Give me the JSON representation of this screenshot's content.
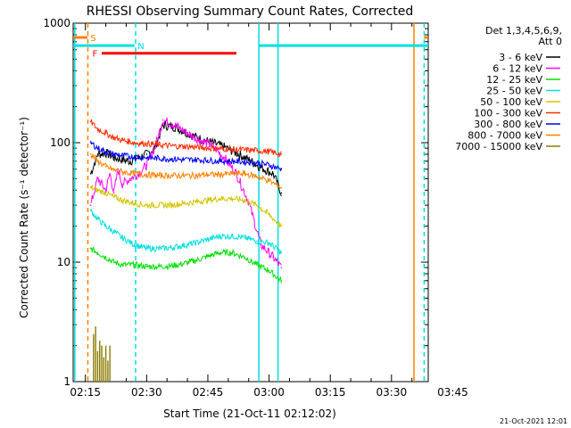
{
  "chart_data": {
    "type": "line",
    "title": "RHESSI Observing Summary Count Rates, Corrected",
    "xlabel": "Start Time (21-Oct-11 02:12:02)",
    "ylabel": "Corrected Count Rate (s⁻¹ detector⁻¹)",
    "y_scale": "log",
    "ylim": [
      1,
      1000
    ],
    "y_ticks": [
      1,
      10,
      100,
      1000
    ],
    "y_tick_labels": [
      "1",
      "10",
      "100",
      "1000"
    ],
    "x_range_min": [
      132,
      219
    ],
    "x_ticks_min": [
      135,
      150,
      165,
      180,
      195,
      210,
      225
    ],
    "x_tick_labels": [
      "02:15",
      "02:30",
      "02:45",
      "03:00",
      "03:15",
      "03:30",
      "03:45"
    ],
    "legend_title": "Det 1,3,4,5,6,9,",
    "legend_subtitle": "Att 0",
    "legend_position": "right",
    "footer_date": "21-Oct-2021 12:01",
    "colors": {
      "3-6": "#000000",
      "6-12": "#ff00ff",
      "12-25": "#00e000",
      "25-50": "#00e0e0",
      "50-100": "#d4c400",
      "100-300": "#ff2a00",
      "300-800": "#0000ff",
      "800-7000": "#ff8000",
      "7000-15000": "#8b7a00"
    },
    "series": [
      {
        "name": "3 - 6 keV",
        "color": "#000000",
        "x": [
          136.3,
          138,
          140,
          142,
          144,
          146,
          148,
          150,
          152,
          154,
          157,
          160,
          163,
          166,
          169,
          172,
          175,
          178,
          181,
          183
        ],
        "y": [
          55,
          80,
          82,
          75,
          72,
          70,
          75,
          80,
          90,
          140,
          135,
          120,
          108,
          100,
          92,
          82,
          72,
          62,
          55,
          38
        ]
      },
      {
        "name": "6 - 12 keV",
        "color": "#ff00ff",
        "x": [
          136.3,
          138,
          140,
          141,
          142,
          143,
          144,
          146,
          148,
          150,
          152,
          154,
          157,
          160,
          163,
          166,
          169,
          172,
          175,
          178,
          181,
          183
        ],
        "y": [
          30,
          50,
          40,
          55,
          38,
          60,
          45,
          50,
          55,
          65,
          90,
          155,
          140,
          120,
          105,
          95,
          75,
          55,
          32,
          14,
          11,
          9
        ]
      },
      {
        "name": "12 - 25 keV",
        "color": "#00e000",
        "x": [
          136.3,
          138,
          140,
          142,
          144,
          147,
          150,
          153,
          156,
          159,
          162,
          165,
          168,
          171,
          174,
          177,
          180,
          183
        ],
        "y": [
          13,
          12,
          11,
          10,
          9.5,
          9.5,
          9.2,
          9.2,
          9.3,
          9.7,
          10.3,
          11.2,
          12,
          12,
          11,
          9.5,
          8.5,
          7
        ]
      },
      {
        "name": "25 - 50 keV",
        "color": "#00e0e0",
        "x": [
          136.3,
          138,
          140,
          142,
          144,
          147,
          150,
          153,
          156,
          159,
          162,
          165,
          168,
          171,
          174,
          177,
          180,
          183
        ],
        "y": [
          27,
          23,
          20,
          18,
          16,
          14,
          13,
          13,
          13.2,
          13.8,
          14.5,
          15.5,
          16.5,
          16.5,
          16,
          15,
          14.5,
          12
        ]
      },
      {
        "name": "50 - 100 keV",
        "color": "#d4c400",
        "x": [
          136.3,
          138,
          140,
          142,
          144,
          147,
          150,
          153,
          156,
          159,
          162,
          165,
          168,
          171,
          174,
          177,
          180,
          183
        ],
        "y": [
          42,
          40,
          38,
          35,
          33,
          31,
          30,
          30,
          30,
          31,
          32,
          33,
          34,
          34,
          33,
          30,
          25,
          20
        ]
      },
      {
        "name": "100 - 300 keV",
        "color": "#ff2a00",
        "x": [
          136.3,
          138,
          140,
          142,
          144,
          147,
          150,
          153,
          156,
          159,
          162,
          165,
          168,
          171,
          174,
          177,
          180,
          183
        ],
        "y": [
          150,
          130,
          120,
          110,
          105,
          100,
          98,
          96,
          94,
          93,
          92,
          90,
          89,
          88,
          87,
          86,
          84,
          80
        ]
      },
      {
        "name": "300 - 800 keV",
        "color": "#0000ff",
        "x": [
          136.3,
          138,
          140,
          142,
          144,
          147,
          150,
          153,
          156,
          159,
          162,
          165,
          168,
          171,
          174,
          177,
          180,
          183
        ],
        "y": [
          100,
          90,
          84,
          80,
          78,
          76,
          75,
          74,
          73,
          72,
          72,
          71,
          70,
          70,
          69,
          68,
          65,
          60
        ]
      },
      {
        "name": "800 - 7000 keV",
        "color": "#ff8000",
        "x": [
          136.3,
          138,
          140,
          142,
          144,
          147,
          150,
          153,
          156,
          159,
          162,
          165,
          168,
          171,
          174,
          177,
          180,
          183
        ],
        "y": [
          80,
          70,
          63,
          59,
          57,
          55,
          54,
          53,
          53,
          53,
          53,
          54,
          54,
          55,
          55,
          52,
          48,
          42
        ]
      },
      {
        "name": "7000 - 15000 keV",
        "color": "#8b7a00",
        "x": [
          137,
          137.5,
          138,
          138.5,
          139,
          139.5,
          140,
          140.5,
          141
        ],
        "y": [
          2.5,
          2.9,
          1.8,
          2.2,
          2.0,
          1.6,
          2.0,
          1.5,
          2.0
        ]
      }
    ],
    "markers": [
      {
        "label": "N",
        "color": "#00e0e0",
        "y": 650,
        "segments": [
          [
            132,
            147
          ],
          [
            177.5,
            219
          ]
        ]
      },
      {
        "label": "S",
        "color": "#ff8000",
        "y": 760,
        "segments": [
          [
            132,
            135.5
          ],
          [
            218,
            219
          ]
        ]
      },
      {
        "label": "F",
        "color": "#ff0000",
        "y": 560,
        "segments": [
          [
            139,
            172
          ]
        ]
      }
    ],
    "vertical_lines": [
      {
        "x": 132.4,
        "color": "#00e0e0",
        "style": "solid"
      },
      {
        "x": 147.3,
        "color": "#00e0e0",
        "style": "dashed"
      },
      {
        "x": 135.6,
        "color": "#ff8000",
        "style": "dashed"
      },
      {
        "x": 177.5,
        "color": "#00e0e0",
        "style": "solid"
      },
      {
        "x": 182.2,
        "color": "#00e0e0",
        "style": "solid"
      },
      {
        "x": 215.5,
        "color": "#ff8000",
        "style": "solid"
      },
      {
        "x": 218.0,
        "color": "#00e0e0",
        "style": "dashed"
      }
    ]
  }
}
